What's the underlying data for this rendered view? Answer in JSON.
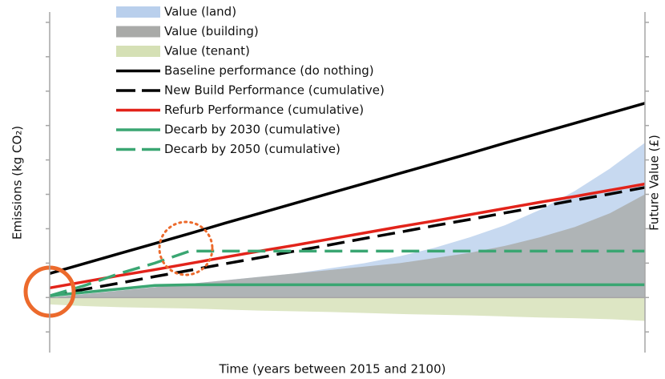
{
  "chart_data": {
    "type": "line",
    "xlabel": "Time (years between 2015 and 2100)",
    "ylabel": "Emissions (kg CO₂)",
    "y2label": "Future Value (£)",
    "x": [
      2015,
      2020,
      2025,
      2030,
      2035,
      2040,
      2045,
      2050,
      2055,
      2060,
      2065,
      2070,
      2075,
      2080,
      2085,
      2090,
      2095,
      2100
    ],
    "xlim": [
      2015,
      2100
    ],
    "ylim": [
      -1.6,
      8.3
    ],
    "yticks": [
      -1,
      0,
      1,
      2,
      3,
      4,
      5,
      6,
      7,
      8
    ],
    "y2lim": [
      -1.6,
      8.3
    ],
    "y2ticks": [
      -1,
      0,
      1,
      2,
      3,
      4,
      5,
      6,
      7,
      8
    ],
    "legend": "upper left",
    "series": [
      {
        "name": "Value (land)",
        "kind": "area",
        "axis": "y2",
        "color": "#b9cfec",
        "values": [
          0,
          0.1,
          0.2,
          0.3,
          0.4,
          0.5,
          0.6,
          0.7,
          0.85,
          1.0,
          1.2,
          1.45,
          1.75,
          2.1,
          2.55,
          3.1,
          3.75,
          4.5
        ]
      },
      {
        "name": "Value (building)",
        "kind": "area",
        "axis": "y2",
        "color": "#a9aaa8",
        "values": [
          0,
          0.1,
          0.2,
          0.3,
          0.4,
          0.5,
          0.6,
          0.7,
          0.8,
          0.9,
          1.0,
          1.15,
          1.3,
          1.5,
          1.75,
          2.05,
          2.45,
          3.0
        ]
      },
      {
        "name": "Value (tenant)",
        "kind": "area",
        "axis": "y2",
        "color": "#d5e0b5",
        "values": [
          -0.2,
          -0.25,
          -0.28,
          -0.3,
          -0.32,
          -0.35,
          -0.38,
          -0.4,
          -0.42,
          -0.45,
          -0.48,
          -0.5,
          -0.52,
          -0.55,
          -0.58,
          -0.6,
          -0.63,
          -0.68
        ]
      },
      {
        "name": "Baseline performance (do nothing)",
        "kind": "line",
        "dash": false,
        "color": "#000000",
        "values": [
          0.7,
          0.99,
          1.28,
          1.57,
          1.86,
          2.16,
          2.45,
          2.74,
          3.03,
          3.32,
          3.61,
          3.9,
          4.19,
          4.49,
          4.78,
          5.07,
          5.36,
          5.65
        ]
      },
      {
        "name": "New Build Performance (cumulative)",
        "kind": "line",
        "dash": true,
        "color": "#000000",
        "values": [
          0.05,
          0.24,
          0.42,
          0.61,
          0.79,
          0.98,
          1.16,
          1.35,
          1.53,
          1.72,
          1.9,
          2.09,
          2.27,
          2.46,
          2.64,
          2.83,
          3.01,
          3.2
        ]
      },
      {
        "name": "Refurb Performance (cumulative)",
        "kind": "line",
        "dash": false,
        "color": "#e2231a",
        "values": [
          0.28,
          0.46,
          0.64,
          0.81,
          0.99,
          1.17,
          1.35,
          1.52,
          1.7,
          1.88,
          2.06,
          2.23,
          2.41,
          2.59,
          2.77,
          2.94,
          3.12,
          3.3
        ]
      },
      {
        "name": "Decarb by 2030 (cumulative)",
        "kind": "line",
        "dash": false,
        "color": "#3aa672",
        "values": [
          0.05,
          0.15,
          0.25,
          0.35,
          0.37,
          0.37,
          0.37,
          0.37,
          0.37,
          0.37,
          0.37,
          0.37,
          0.37,
          0.37,
          0.37,
          0.37,
          0.37,
          0.37
        ]
      },
      {
        "name": "Decarb by 2050 (cumulative)",
        "kind": "line",
        "dash": true,
        "color": "#3aa672",
        "values": [
          0.05,
          0.35,
          0.7,
          1.0,
          1.35,
          1.35,
          1.35,
          1.35,
          1.35,
          1.35,
          1.35,
          1.35,
          1.35,
          1.35,
          1.35,
          1.35,
          1.35,
          1.35
        ]
      }
    ]
  }
}
